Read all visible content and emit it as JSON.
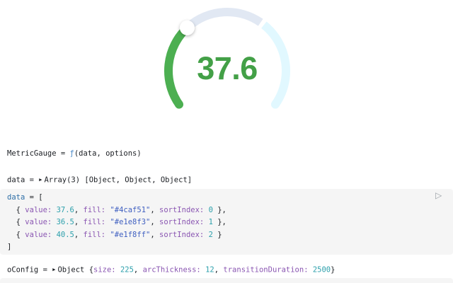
{
  "chart_data": {
    "type": "pie",
    "subtype": "gauge-arc",
    "title": "",
    "center_label": "37.6",
    "center_label_color": "#43a047",
    "series": [
      {
        "name": "segment-green",
        "value": 37.6,
        "fill": "#4caf51",
        "sortIndex": 0
      },
      {
        "name": "segment-lavender",
        "value": 36.5,
        "fill": "#e1e8f3",
        "sortIndex": 1
      },
      {
        "name": "segment-lightblue",
        "value": 40.5,
        "fill": "#e1f8ff",
        "sortIndex": 2
      }
    ],
    "arc_span_degrees": 250,
    "arc_thickness": 12,
    "size": 225,
    "knob_color": "#ffffff",
    "legend_position": "none",
    "grid": false
  },
  "colors": {
    "editor_background": "#f5f5f5",
    "play_icon": "#9aa0a6"
  },
  "syntax_colors": {
    "plain": "#1b1e23",
    "def": "#2e6fa7",
    "key": "#8a56b2",
    "num": "#2da0ac",
    "str": "#3f5fc0",
    "fn": "#4e8cc9",
    "caret": "#1b1e23"
  },
  "cells": {
    "metricgauge": {
      "tokens": [
        [
          "plain",
          "MetricGauge = "
        ],
        [
          "fn",
          "ƒ"
        ],
        [
          "plain",
          "(data, options)"
        ]
      ]
    },
    "data_summary": {
      "tokens": [
        [
          "plain",
          "data = "
        ],
        [
          "caret",
          "▶"
        ],
        [
          "plain",
          "Array(3) [Object, Object, Object]"
        ]
      ]
    },
    "data_editor": {
      "play_label": "▷",
      "lines": [
        [
          [
            "def",
            "data"
          ],
          [
            "plain",
            " = ["
          ]
        ],
        [
          [
            "plain",
            "  { "
          ],
          [
            "key",
            "value:"
          ],
          [
            "plain",
            " "
          ],
          [
            "num",
            "37.6"
          ],
          [
            "plain",
            ", "
          ],
          [
            "key",
            "fill:"
          ],
          [
            "plain",
            " "
          ],
          [
            "str",
            "\"#4caf51\""
          ],
          [
            "plain",
            ", "
          ],
          [
            "key",
            "sortIndex:"
          ],
          [
            "plain",
            " "
          ],
          [
            "num",
            "0"
          ],
          [
            "plain",
            " },"
          ]
        ],
        [
          [
            "plain",
            "  { "
          ],
          [
            "key",
            "value:"
          ],
          [
            "plain",
            " "
          ],
          [
            "num",
            "36.5"
          ],
          [
            "plain",
            ", "
          ],
          [
            "key",
            "fill:"
          ],
          [
            "plain",
            " "
          ],
          [
            "str",
            "\"#e1e8f3\""
          ],
          [
            "plain",
            ", "
          ],
          [
            "key",
            "sortIndex:"
          ],
          [
            "plain",
            " "
          ],
          [
            "num",
            "1"
          ],
          [
            "plain",
            " },"
          ]
        ],
        [
          [
            "plain",
            "  { "
          ],
          [
            "key",
            "value:"
          ],
          [
            "plain",
            " "
          ],
          [
            "num",
            "40.5"
          ],
          [
            "plain",
            ", "
          ],
          [
            "key",
            "fill:"
          ],
          [
            "plain",
            " "
          ],
          [
            "str",
            "\"#e1f8ff\""
          ],
          [
            "plain",
            ", "
          ],
          [
            "key",
            "sortIndex:"
          ],
          [
            "plain",
            " "
          ],
          [
            "num",
            "2"
          ],
          [
            "plain",
            " }"
          ]
        ],
        [
          [
            "plain",
            "]"
          ]
        ]
      ]
    },
    "oconfig_summary": {
      "tokens": [
        [
          "plain",
          "oConfig = "
        ],
        [
          "caret",
          "▶"
        ],
        [
          "plain",
          "Object {"
        ],
        [
          "key",
          "size:"
        ],
        [
          "plain",
          " "
        ],
        [
          "num",
          "225"
        ],
        [
          "plain",
          ", "
        ],
        [
          "key",
          "arcThickness:"
        ],
        [
          "plain",
          " "
        ],
        [
          "num",
          "12"
        ],
        [
          "plain",
          ", "
        ],
        [
          "key",
          "transitionDuration:"
        ],
        [
          "plain",
          " "
        ],
        [
          "num",
          "2500"
        ],
        [
          "plain",
          "}"
        ]
      ]
    }
  }
}
